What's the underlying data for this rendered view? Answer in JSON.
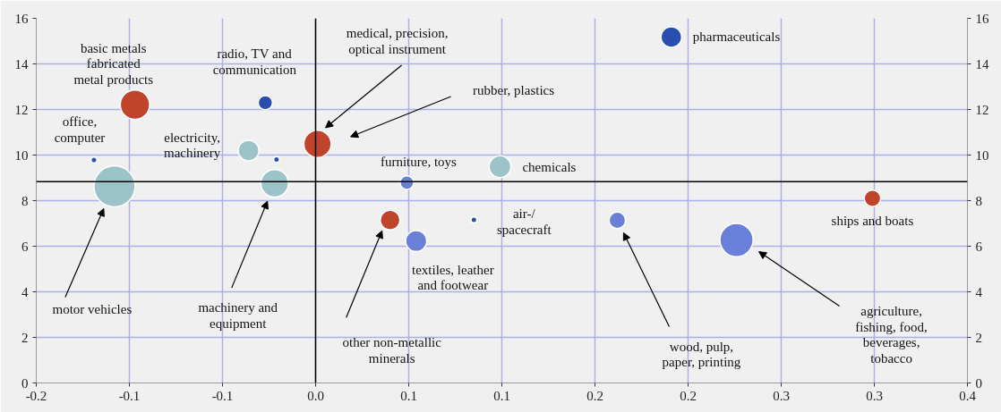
{
  "chart_data": {
    "type": "bubble",
    "xlim": [
      -0.15,
      0.35
    ],
    "xticks": [
      {
        "value": -0.15,
        "label": "-0.2"
      },
      {
        "value": -0.1,
        "label": "-0.1"
      },
      {
        "value": -0.05,
        "label": "-0.1"
      },
      {
        "value": 0,
        "label": "0.0"
      },
      {
        "value": 0.05,
        "label": "0.1"
      },
      {
        "value": 0.1,
        "label": "0.1"
      },
      {
        "value": 0.15,
        "label": "0.2"
      },
      {
        "value": 0.2,
        "label": "0.2"
      },
      {
        "value": 0.25,
        "label": "0.3"
      },
      {
        "value": 0.3,
        "label": "0.3"
      },
      {
        "value": 0.35,
        "label": "0.4"
      }
    ],
    "ylim": [
      0,
      16
    ],
    "yticks": [
      0,
      2,
      4,
      6,
      8,
      10,
      12,
      14,
      16
    ],
    "y2lim": [
      0,
      16
    ],
    "y2ticks": [
      0,
      2,
      4,
      6,
      8,
      10,
      12,
      14,
      16
    ],
    "grid": true,
    "series": [
      {
        "color": "#c0442c",
        "x": [
          -0.097,
          0.001,
          0.04,
          0.299
        ],
        "values": [
          12.21,
          10.49,
          7.15,
          8.1
        ],
        "sizes": [
          0.51,
          0.44,
          0.23,
          0.16
        ]
      },
      {
        "color": "#9cc3c8",
        "x": [
          -0.108,
          -0.036,
          -0.022,
          0.099
        ],
        "values": [
          8.63,
          10.2,
          8.76,
          9.49
        ],
        "sizes": [
          1,
          0.25,
          0.45,
          0.28
        ]
      },
      {
        "color": "#6a80d8",
        "x": [
          0.049,
          0.054,
          0.162,
          0.226
        ],
        "values": [
          8.79,
          6.23,
          7.14,
          6.27
        ],
        "sizes": [
          0.11,
          0.26,
          0.16,
          0.65
        ]
      },
      {
        "color": "#2a4db0",
        "x": [
          0.191,
          -0.027,
          -0.119,
          -0.021,
          0.085
        ],
        "values": [
          15.18,
          12.3,
          9.78,
          9.8,
          7.16
        ],
        "sizes": [
          0.25,
          0.12,
          0.02,
          0.02,
          0.02
        ]
      }
    ],
    "ref_lines": [
      {
        "axis": "y",
        "value": 8.83,
        "color": "#000000"
      },
      {
        "axis": "x",
        "value": 0,
        "color": "#000000"
      }
    ],
    "annotations": [
      {
        "text": "pharmaceuticals",
        "x": 0.191,
        "y": 15.18
      },
      {
        "text": "basic metals\nfabricated\nmetal products",
        "x": -0.097,
        "y": 12.21
      },
      {
        "text": "radio, TV and\ncommunication",
        "x": -0.027,
        "y": 12.3
      },
      {
        "text": "office,\ncomputer",
        "x": -0.119,
        "y": 9.78
      },
      {
        "text": "electricity,\nmachinery",
        "x": -0.036,
        "y": 10.2
      },
      "medical, precision,\noptical instrument",
      "rubber, plastics",
      {
        "text": "chemicals",
        "x": 0.099,
        "y": 9.49
      },
      {
        "text": "furniture, toys",
        "x": 0.049,
        "y": 8.79
      },
      "motor vehicles",
      "machinery and\nequipment",
      {
        "text": "ships and boats",
        "x": 0.299,
        "y": 8.1
      },
      "other non-metallic\nminerals",
      {
        "text": "air-/\nspacecraft",
        "x": 0.085,
        "y": 7.16
      },
      {
        "text": "textiles, leather\nand footwear",
        "x": 0.054,
        "y": 6.23
      },
      "wood, pulp,\npaper, printing",
      "agriculture,\nfishing, food,\nbeverages,\ntobacco"
    ]
  }
}
